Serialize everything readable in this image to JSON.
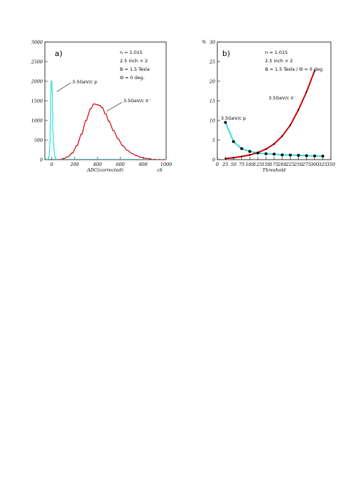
{
  "chart_data": [
    {
      "type": "histogram",
      "panel_label": "a)",
      "xlabel": "ADC(corrected)",
      "xunit": "ch",
      "ylabel": "",
      "xlim": [
        -60,
        1000
      ],
      "ylim": [
        0,
        3000
      ],
      "xticks": [
        0,
        200,
        400,
        600,
        800,
        1000
      ],
      "yticks": [
        0,
        500,
        1000,
        1500,
        2000,
        2500,
        3000
      ],
      "info_lines": [
        "n = 1.015",
        "2.5 inch × 2",
        "B = 1.5 Tesla",
        "Θ = 0 deg."
      ],
      "series": [
        {
          "name": "3.5GeV/c p",
          "color": "#33dddd",
          "bin_width": 4,
          "x": [
            -40,
            -36,
            -32,
            -28,
            -24,
            -20,
            -16,
            -12,
            -8,
            -4,
            0,
            4,
            8,
            12,
            16,
            20,
            24,
            28,
            32,
            36,
            40
          ],
          "values": [
            5,
            10,
            20,
            40,
            80,
            200,
            450,
            900,
            1700,
            2000,
            2000,
            1800,
            1200,
            700,
            400,
            250,
            150,
            80,
            40,
            20,
            10
          ]
        },
        {
          "name": "3.5GeV/c π⁻",
          "color": "#cc0000",
          "bin_width": 10,
          "x": [
            60,
            100,
            140,
            180,
            220,
            260,
            300,
            340,
            370,
            400,
            420,
            440,
            470,
            500,
            540,
            580,
            620,
            660,
            700,
            740,
            780,
            820,
            860,
            900,
            940,
            980
          ],
          "values": [
            0,
            25,
            70,
            170,
            360,
            650,
            1000,
            1300,
            1420,
            1400,
            1380,
            1330,
            1170,
            980,
            740,
            530,
            360,
            240,
            160,
            100,
            60,
            35,
            18,
            8,
            3,
            0
          ]
        }
      ],
      "annotations": [
        {
          "text": "3.5GeV/c p",
          "series": 0
        },
        {
          "text": "3.5GeV/c π⁻",
          "series": 1
        }
      ]
    },
    {
      "type": "line",
      "panel_label": "b)",
      "xlabel": "Threshold",
      "ylabel": "%",
      "xlim": [
        0,
        350
      ],
      "ylim": [
        0,
        30
      ],
      "xticks": [
        0,
        25,
        50,
        75,
        100,
        125,
        150,
        175,
        200,
        225,
        250,
        275,
        300,
        325,
        350
      ],
      "yticks": [
        0,
        5,
        10,
        15,
        20,
        25,
        30
      ],
      "info_lines": [
        "n = 1.015",
        "2.5 inch × 2",
        "B = 1.5 Tesla / Θ = 0 deg."
      ],
      "series": [
        {
          "name": "3.5GeV/c p",
          "color": "#33dddd",
          "x": [
            25,
            50,
            75,
            100,
            125,
            150,
            175,
            200,
            225,
            250,
            275,
            300,
            325
          ],
          "values": [
            9.5,
            4.6,
            2.8,
            2.1,
            1.7,
            1.5,
            1.4,
            1.2,
            1.15,
            1.1,
            1.0,
            0.95,
            0.9
          ]
        },
        {
          "name": "3.5GeV/c π⁻",
          "color": "#cc0000",
          "x": [
            25,
            50,
            75,
            100,
            125,
            150,
            175,
            200,
            225,
            250,
            275,
            300
          ],
          "values": [
            0.3,
            0.5,
            0.8,
            1.2,
            1.8,
            2.7,
            4.0,
            6.0,
            8.8,
            12.7,
            17.3,
            22.7
          ]
        }
      ],
      "annotations": [
        {
          "text": "3.5GeV/c p",
          "series": 0
        },
        {
          "text": "3.5GeV/c π⁻",
          "series": 1
        }
      ]
    }
  ]
}
